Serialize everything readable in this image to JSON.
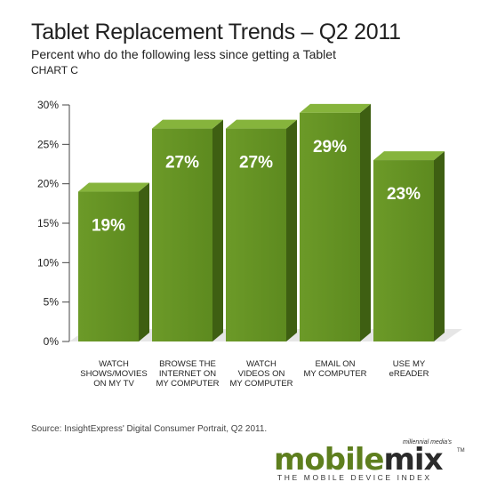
{
  "header": {
    "title": "Tablet Replacement Trends – Q2 2011",
    "subtitle": "Percent who do the following less since getting a Tablet",
    "chart_label": "CHART C"
  },
  "source": "Source: InsightExpress' Digital Consumer Portrait, Q2 2011.",
  "logo": {
    "top_text": "millennial media's",
    "word_mobile": "mobile",
    "word_mix": "mix",
    "trademark": "TM",
    "tagline": "THE MOBILE DEVICE INDEX"
  },
  "colors": {
    "bar_front": "#5d8a1f",
    "bar_top": "#86b43c",
    "bar_side": "#3e5f12",
    "accent": "#5e7f1e"
  },
  "chart_data": {
    "type": "bar",
    "title": "Tablet Replacement Trends – Q2 2011",
    "subtitle": "Percent who do the following less since getting a Tablet",
    "categories": [
      [
        "WATCH",
        "SHOWS/MOVIES",
        "ON MY TV"
      ],
      [
        "BROWSE THE",
        "INTERNET ON",
        "MY COMPUTER"
      ],
      [
        "WATCH",
        "VIDEOS ON",
        "MY COMPUTER"
      ],
      [
        "EMAIL ON",
        "MY COMPUTER"
      ],
      [
        "USE MY",
        "eREADER"
      ]
    ],
    "values": [
      19,
      27,
      27,
      29,
      23
    ],
    "data_labels": [
      "19%",
      "27%",
      "27%",
      "29%",
      "23%"
    ],
    "yticks": [
      "0%",
      "5%",
      "10%",
      "15%",
      "20%",
      "25%",
      "30%"
    ],
    "ylim": [
      0,
      30
    ],
    "grid": false,
    "legend": "none"
  }
}
